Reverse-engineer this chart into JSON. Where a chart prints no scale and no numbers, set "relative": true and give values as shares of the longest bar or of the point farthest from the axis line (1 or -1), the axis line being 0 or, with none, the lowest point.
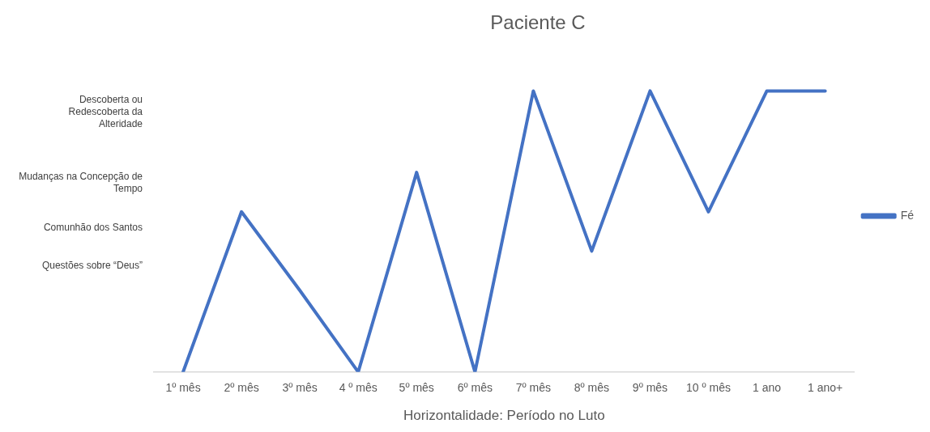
{
  "chart_data": {
    "type": "line",
    "title": "Paciente C",
    "xlabel": "Horizontalidade: Período no Luto",
    "categories": [
      "1º mês",
      "2º mês",
      "3º mês",
      "4 º mês",
      "5º mês",
      "6º mês",
      "7º mês",
      "8º mês",
      "9º mês",
      "10 º mês",
      "1 ano",
      "1 ano+"
    ],
    "relative": true,
    "series": [
      {
        "name": "Fé",
        "color": "#4472c4",
        "values": [
          0,
          0.57,
          0.29,
          0,
          0.71,
          0,
          1,
          0.43,
          1,
          0.57,
          1,
          1
        ]
      }
    ],
    "annotations": [
      "Descoberta ou Redescoberta da Alteridade",
      "Mudanças na Concepção de Tempo",
      "Comunhão dos Santos",
      "Questões sobre “Deus”"
    ],
    "legend": "right",
    "marker": "none",
    "line_style": "solid"
  }
}
